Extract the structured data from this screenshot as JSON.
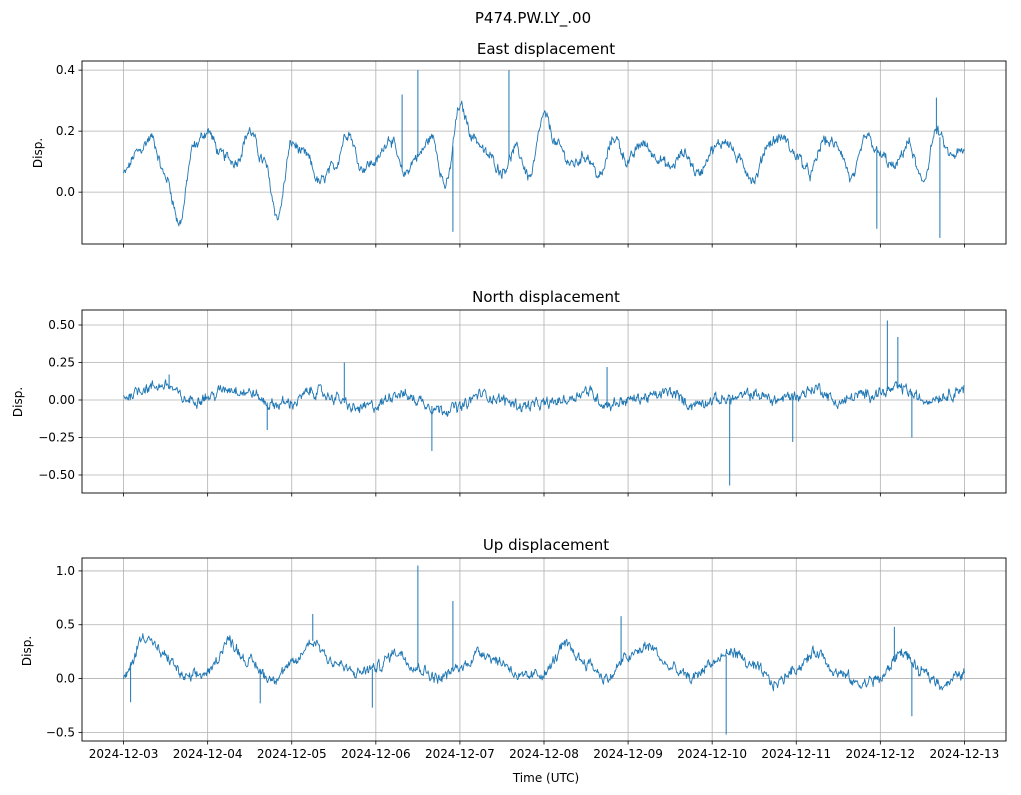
{
  "figure": {
    "suptitle": "P474.PW.LY_.00",
    "xlabel": "Time (UTC)",
    "line_color": "#1f77b4"
  },
  "chart_data": [
    {
      "type": "line",
      "title": "East displacement",
      "xlabel": "",
      "ylabel": "Disp.",
      "x_range": [
        "2024-12-03",
        "2024-12-13"
      ],
      "ylim": [
        -0.17,
        0.43
      ],
      "y_ticks": [
        0.0,
        0.2,
        0.4
      ],
      "y_tick_labels": [
        "0.0",
        "0.2",
        "0.4"
      ],
      "x_ticks": [
        "2024-12-03",
        "2024-12-04",
        "2024-12-05",
        "2024-12-06",
        "2024-12-07",
        "2024-12-08",
        "2024-12-09",
        "2024-12-10",
        "2024-12-11",
        "2024-12-12",
        "2024-12-13"
      ],
      "x_tick_labels_shown": false,
      "grid": true,
      "series": [
        {
          "x": [
            "2024-12-03T00:00",
            "2024-12-03T04:00",
            "2024-12-03T08:00",
            "2024-12-03T12:00",
            "2024-12-03T16:00",
            "2024-12-03T20:00",
            "2024-12-04T00:00",
            "2024-12-04T04:00",
            "2024-12-04T08:00",
            "2024-12-04T12:00",
            "2024-12-04T16:00",
            "2024-12-04T20:00",
            "2024-12-05T00:00",
            "2024-12-05T04:00",
            "2024-12-05T08:00",
            "2024-12-05T12:00",
            "2024-12-05T16:00",
            "2024-12-05T20:00",
            "2024-12-06T00:00",
            "2024-12-06T04:00",
            "2024-12-06T08:00",
            "2024-12-06T12:00",
            "2024-12-06T16:00",
            "2024-12-06T20:00",
            "2024-12-07T00:00",
            "2024-12-07T04:00",
            "2024-12-07T08:00",
            "2024-12-07T12:00",
            "2024-12-07T16:00",
            "2024-12-07T20:00",
            "2024-12-08T00:00",
            "2024-12-08T04:00",
            "2024-12-08T08:00",
            "2024-12-08T12:00",
            "2024-12-08T16:00",
            "2024-12-08T20:00",
            "2024-12-09T00:00",
            "2024-12-09T04:00",
            "2024-12-09T08:00",
            "2024-12-09T12:00",
            "2024-12-09T16:00",
            "2024-12-09T20:00",
            "2024-12-10T00:00",
            "2024-12-10T04:00",
            "2024-12-10T08:00",
            "2024-12-10T12:00",
            "2024-12-10T16:00",
            "2024-12-10T20:00",
            "2024-12-11T00:00",
            "2024-12-11T04:00",
            "2024-12-11T08:00",
            "2024-12-11T12:00",
            "2024-12-11T16:00",
            "2024-12-11T20:00",
            "2024-12-12T00:00",
            "2024-12-12T04:00",
            "2024-12-12T08:00",
            "2024-12-12T12:00",
            "2024-12-12T16:00",
            "2024-12-12T20:00",
            "2024-12-13T00:00"
          ],
          "values": [
            0.06,
            0.13,
            0.18,
            0.05,
            -0.1,
            0.15,
            0.2,
            0.12,
            0.1,
            0.2,
            0.1,
            -0.08,
            0.16,
            0.12,
            0.03,
            0.08,
            0.2,
            0.08,
            0.1,
            0.18,
            0.06,
            0.12,
            0.18,
            0.02,
            0.28,
            0.18,
            0.12,
            0.07,
            0.14,
            0.05,
            0.25,
            0.15,
            0.09,
            0.12,
            0.05,
            0.18,
            0.1,
            0.16,
            0.12,
            0.08,
            0.13,
            0.06,
            0.14,
            0.17,
            0.1,
            0.04,
            0.16,
            0.18,
            0.12,
            0.06,
            0.17,
            0.15,
            0.04,
            0.18,
            0.12,
            0.08,
            0.16,
            0.03,
            0.2,
            0.12,
            0.13
          ]
        }
      ],
      "spikes": [
        {
          "x": "2024-12-06T12:00",
          "value": 0.4
        },
        {
          "x": "2024-12-06T07:30",
          "value": 0.32
        },
        {
          "x": "2024-12-06T22:00",
          "value": -0.13
        },
        {
          "x": "2024-12-07T14:00",
          "value": 0.4
        },
        {
          "x": "2024-12-12T17:00",
          "value": -0.15
        },
        {
          "x": "2024-12-11T23:00",
          "value": -0.12
        },
        {
          "x": "2024-12-12T16:00",
          "value": 0.31
        }
      ]
    },
    {
      "type": "line",
      "title": "North displacement",
      "xlabel": "",
      "ylabel": "Disp.",
      "x_range": [
        "2024-12-03",
        "2024-12-13"
      ],
      "ylim": [
        -0.62,
        0.6
      ],
      "y_ticks": [
        -0.5,
        -0.25,
        0.0,
        0.25,
        0.5
      ],
      "y_tick_labels": [
        "−0.50",
        "−0.25",
        "0.00",
        "0.25",
        "0.50"
      ],
      "x_ticks": [
        "2024-12-03",
        "2024-12-04",
        "2024-12-05",
        "2024-12-06",
        "2024-12-07",
        "2024-12-08",
        "2024-12-09",
        "2024-12-10",
        "2024-12-11",
        "2024-12-12",
        "2024-12-13"
      ],
      "x_tick_labels_shown": false,
      "grid": true,
      "series": [
        {
          "x": [
            "2024-12-03T00:00",
            "2024-12-03T06:00",
            "2024-12-03T12:00",
            "2024-12-03T18:00",
            "2024-12-04T00:00",
            "2024-12-04T06:00",
            "2024-12-04T12:00",
            "2024-12-04T18:00",
            "2024-12-05T00:00",
            "2024-12-05T06:00",
            "2024-12-05T12:00",
            "2024-12-05T18:00",
            "2024-12-06T00:00",
            "2024-12-06T06:00",
            "2024-12-06T12:00",
            "2024-12-06T18:00",
            "2024-12-07T00:00",
            "2024-12-07T06:00",
            "2024-12-07T12:00",
            "2024-12-07T18:00",
            "2024-12-08T00:00",
            "2024-12-08T06:00",
            "2024-12-08T12:00",
            "2024-12-08T18:00",
            "2024-12-09T00:00",
            "2024-12-09T06:00",
            "2024-12-09T12:00",
            "2024-12-09T18:00",
            "2024-12-10T00:00",
            "2024-12-10T06:00",
            "2024-12-10T12:00",
            "2024-12-10T18:00",
            "2024-12-11T00:00",
            "2024-12-11T06:00",
            "2024-12-11T12:00",
            "2024-12-11T18:00",
            "2024-12-12T00:00",
            "2024-12-12T06:00",
            "2024-12-12T12:00",
            "2024-12-12T18:00",
            "2024-12-13T00:00"
          ],
          "values": [
            0.02,
            0.08,
            0.1,
            0.0,
            0.02,
            0.08,
            0.05,
            -0.03,
            -0.02,
            0.06,
            0.02,
            -0.06,
            -0.04,
            0.05,
            0.0,
            -0.06,
            -0.05,
            0.04,
            0.0,
            -0.04,
            -0.03,
            0.0,
            0.06,
            -0.03,
            0.0,
            0.02,
            0.05,
            -0.03,
            0.0,
            0.01,
            0.04,
            0.0,
            0.03,
            0.08,
            -0.02,
            0.03,
            0.05,
            0.08,
            0.0,
            0.03,
            0.08
          ]
        }
      ],
      "spikes": [
        {
          "x": "2024-12-03T13:00",
          "value": 0.17
        },
        {
          "x": "2024-12-05T15:00",
          "value": 0.25
        },
        {
          "x": "2024-12-06T16:00",
          "value": -0.34
        },
        {
          "x": "2024-12-04T17:00",
          "value": -0.2
        },
        {
          "x": "2024-12-10T05:00",
          "value": -0.57
        },
        {
          "x": "2024-12-10T23:00",
          "value": -0.28
        },
        {
          "x": "2024-12-12T02:00",
          "value": 0.53
        },
        {
          "x": "2024-12-12T05:00",
          "value": 0.42
        },
        {
          "x": "2024-12-12T09:00",
          "value": -0.25
        },
        {
          "x": "2024-12-08T18:00",
          "value": 0.22
        }
      ]
    },
    {
      "type": "line",
      "title": "Up displacement",
      "xlabel": "Time (UTC)",
      "ylabel": "Disp.",
      "x_range": [
        "2024-12-03",
        "2024-12-13"
      ],
      "ylim": [
        -0.58,
        1.12
      ],
      "y_ticks": [
        -0.5,
        0.0,
        0.5,
        1.0
      ],
      "y_tick_labels": [
        "−0.5",
        "0.0",
        "0.5",
        "1.0"
      ],
      "x_ticks": [
        "2024-12-03",
        "2024-12-04",
        "2024-12-05",
        "2024-12-06",
        "2024-12-07",
        "2024-12-08",
        "2024-12-09",
        "2024-12-10",
        "2024-12-11",
        "2024-12-12",
        "2024-12-13"
      ],
      "x_tick_labels_shown": true,
      "grid": true,
      "series": [
        {
          "x": [
            "2024-12-03T00:00",
            "2024-12-03T06:00",
            "2024-12-03T12:00",
            "2024-12-03T18:00",
            "2024-12-04T00:00",
            "2024-12-04T06:00",
            "2024-12-04T12:00",
            "2024-12-04T18:00",
            "2024-12-05T00:00",
            "2024-12-05T06:00",
            "2024-12-05T12:00",
            "2024-12-05T18:00",
            "2024-12-06T00:00",
            "2024-12-06T06:00",
            "2024-12-06T12:00",
            "2024-12-06T18:00",
            "2024-12-07T00:00",
            "2024-12-07T06:00",
            "2024-12-07T12:00",
            "2024-12-07T18:00",
            "2024-12-08T00:00",
            "2024-12-08T06:00",
            "2024-12-08T12:00",
            "2024-12-08T18:00",
            "2024-12-09T00:00",
            "2024-12-09T06:00",
            "2024-12-09T12:00",
            "2024-12-09T18:00",
            "2024-12-10T00:00",
            "2024-12-10T06:00",
            "2024-12-10T12:00",
            "2024-12-10T18:00",
            "2024-12-11T00:00",
            "2024-12-11T06:00",
            "2024-12-11T12:00",
            "2024-12-11T18:00",
            "2024-12-12T00:00",
            "2024-12-12T06:00",
            "2024-12-12T12:00",
            "2024-12-12T18:00",
            "2024-12-13T00:00"
          ],
          "values": [
            0.0,
            0.4,
            0.2,
            0.0,
            0.05,
            0.35,
            0.15,
            0.0,
            0.12,
            0.35,
            0.15,
            0.05,
            0.1,
            0.25,
            0.1,
            0.0,
            0.1,
            0.25,
            0.15,
            0.0,
            0.05,
            0.3,
            0.15,
            0.0,
            0.2,
            0.3,
            0.1,
            0.0,
            0.15,
            0.25,
            0.1,
            -0.05,
            0.1,
            0.25,
            0.05,
            -0.05,
            0.0,
            0.25,
            0.05,
            -0.05,
            0.05
          ]
        }
      ],
      "spikes": [
        {
          "x": "2024-12-06T12:00",
          "value": 1.05
        },
        {
          "x": "2024-12-06T22:00",
          "value": 0.72
        },
        {
          "x": "2024-12-05T06:00",
          "value": 0.6
        },
        {
          "x": "2024-12-03T02:00",
          "value": -0.22
        },
        {
          "x": "2024-12-04T15:00",
          "value": -0.23
        },
        {
          "x": "2024-12-05T23:00",
          "value": -0.27
        },
        {
          "x": "2024-12-10T04:00",
          "value": -0.52
        },
        {
          "x": "2024-12-12T09:00",
          "value": -0.35
        },
        {
          "x": "2024-12-08T22:00",
          "value": 0.58
        },
        {
          "x": "2024-12-12T04:00",
          "value": 0.48
        }
      ]
    }
  ]
}
